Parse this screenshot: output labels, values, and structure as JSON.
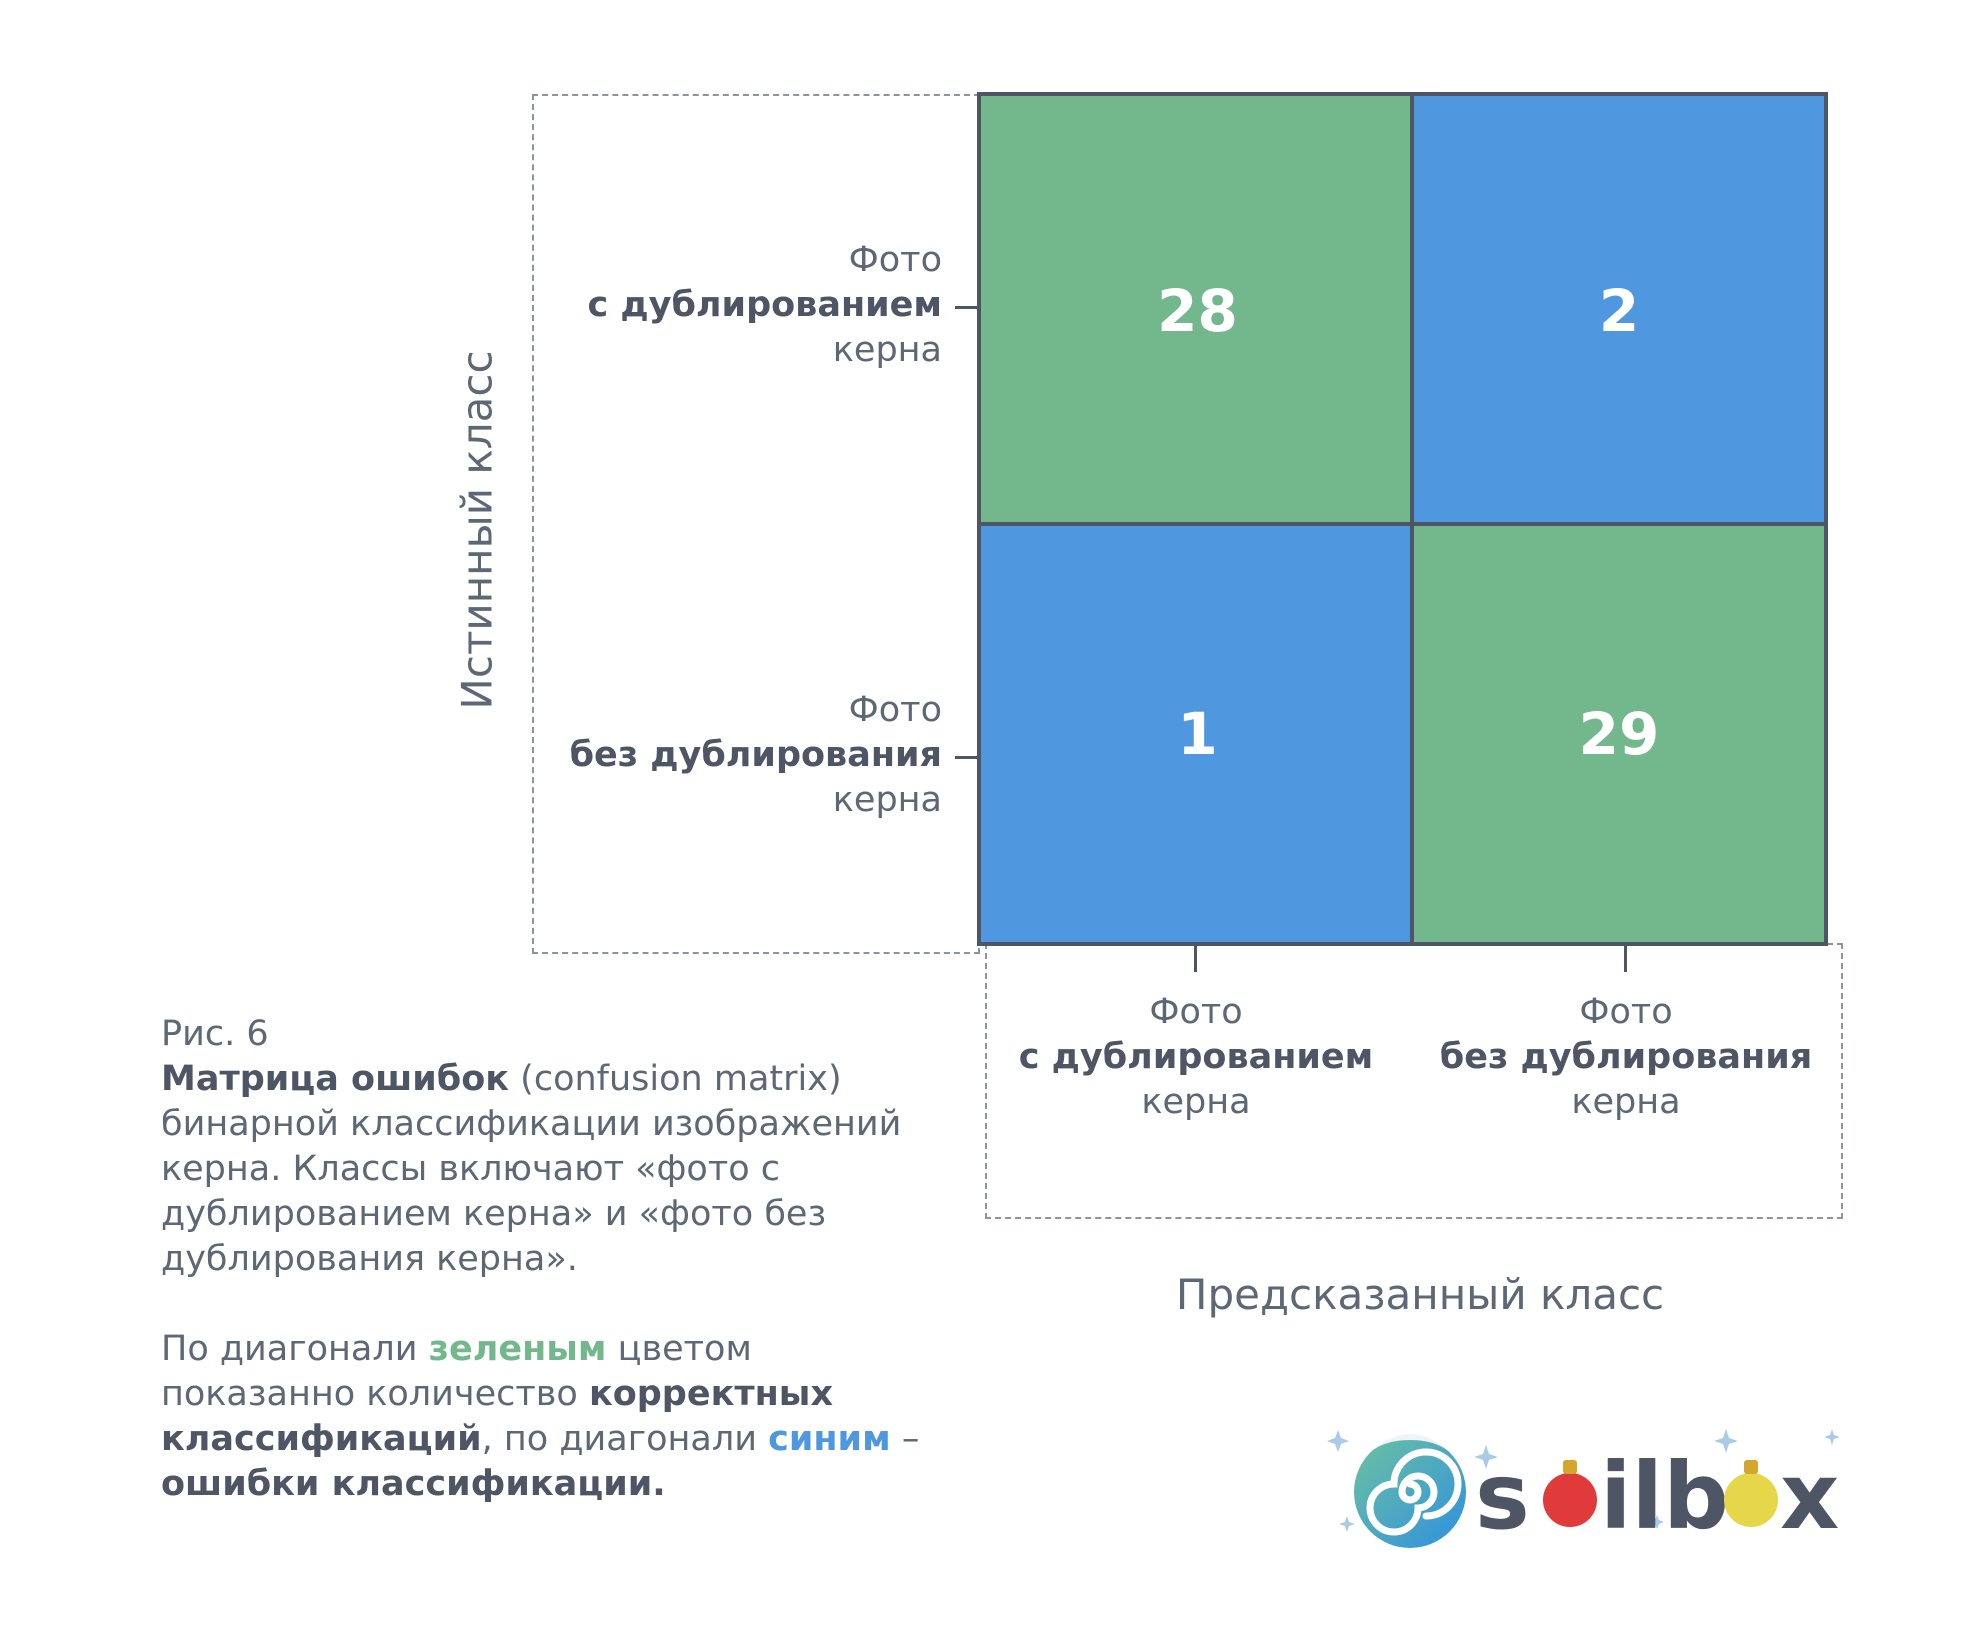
{
  "chart_data": {
    "type": "heatmap",
    "title": "",
    "ylabel": "Истинный класс",
    "xlabel": "Предсказанный класс",
    "rows": [
      {
        "line1": "Фото",
        "line2": "с дублированием",
        "line3": "керна"
      },
      {
        "line1": "Фото",
        "line2": "без дублирования",
        "line3": "керна"
      }
    ],
    "columns": [
      {
        "line1": "Фото",
        "line2": "с дублированием",
        "line3": "керна"
      },
      {
        "line1": "Фото",
        "line2": "без дублирования",
        "line3": "керна"
      }
    ],
    "values": [
      [
        28,
        2
      ],
      [
        1,
        29
      ]
    ],
    "cell_colors": [
      [
        "#73b78c",
        "#4f98df"
      ],
      [
        "#4f98df",
        "#73b78c"
      ]
    ]
  },
  "colors": {
    "correct": "#73b78c",
    "error": "#4f98df",
    "frame": "#4e5666",
    "text": "#5d6877"
  },
  "caption": {
    "fig": "Рис. 6",
    "term": "Матрица ошибок",
    "term_en": " (confusion matrix)",
    "desc": "бинарной классификации изображений керна. Классы включают «фото с дублированием керна» и «фото без дублирования керна».",
    "p2_a": "По диагонали ",
    "p2_green": "зеленым",
    "p2_b": " цветом показанно количество ",
    "p2_bold1": "корректных классификаций",
    "p2_c": ", по диагонали ",
    "p2_blue": "синим",
    "p2_d": " – ",
    "p2_bold2": "ошибки классификации."
  },
  "logo": {
    "text_part1": "s",
    "text_part2": "ilb",
    "text_part3": "x",
    "full_name": "soilbox"
  }
}
